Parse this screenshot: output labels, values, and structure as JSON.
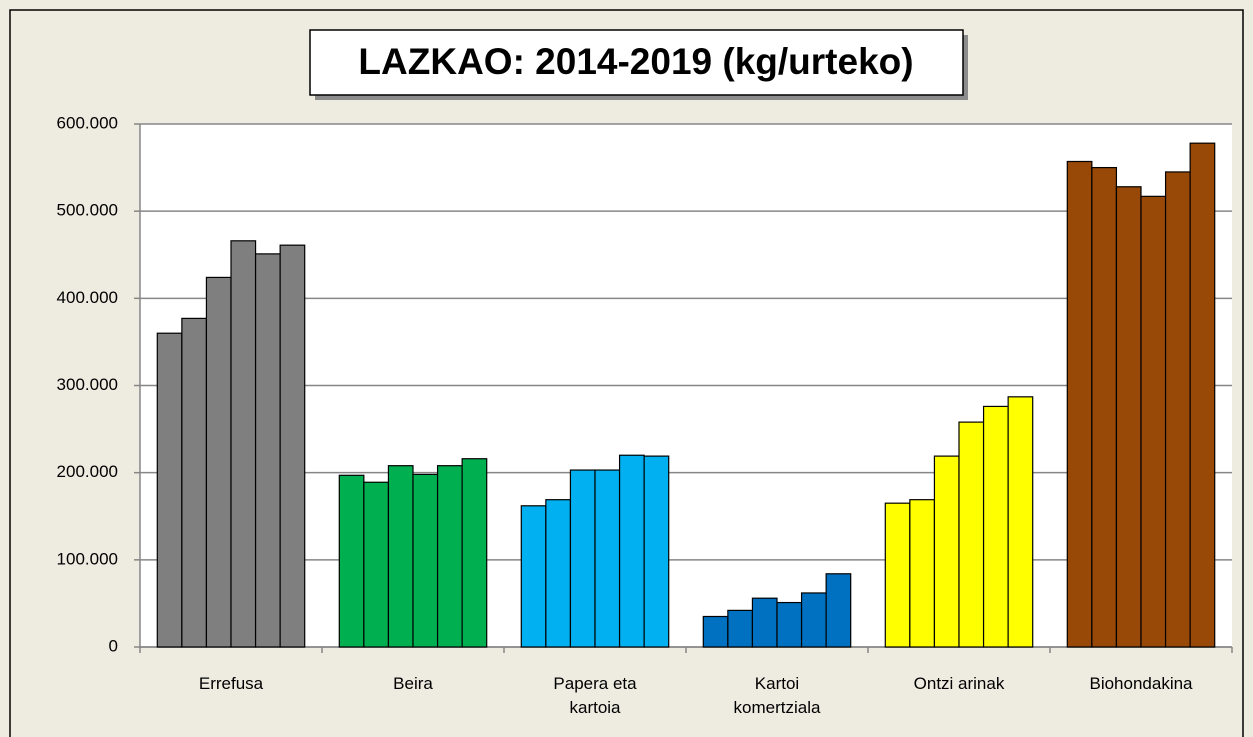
{
  "chart_data": {
    "type": "bar",
    "title": "LAZKAO: 2014-2019 (kg/urteko)",
    "categories": [
      "Errefusa",
      "Beira",
      "Papera eta kartoia",
      "Kartoi komertziala",
      "Ontzi arinak",
      "Biohondakina"
    ],
    "colors": [
      "#7f7f7f",
      "#00b050",
      "#00b0f0",
      "#0070c0",
      "#ffff00",
      "#984807"
    ],
    "values": [
      [
        360000,
        377000,
        424000,
        466000,
        451000,
        461000
      ],
      [
        197000,
        189000,
        208000,
        198000,
        208000,
        216000
      ],
      [
        162000,
        169000,
        203000,
        203000,
        220000,
        219000
      ],
      [
        35000,
        42000,
        56000,
        51000,
        62000,
        84000
      ],
      [
        165000,
        169000,
        219000,
        258000,
        276000,
        287000
      ],
      [
        557000,
        550000,
        528000,
        517000,
        545000,
        578000
      ]
    ],
    "ylim": [
      0,
      600000
    ],
    "yticks": [
      0,
      {
        "value": 100000,
        "label": "100.000"
      },
      {
        "value": 200000,
        "label": "200.000"
      },
      {
        "value": 300000,
        "label": "300.000"
      },
      {
        "value": 400000,
        "label": "400.000"
      },
      {
        "value": 500000,
        "label": "500.000"
      },
      {
        "value": 600000,
        "label": "600.000"
      }
    ],
    "grid": true
  }
}
